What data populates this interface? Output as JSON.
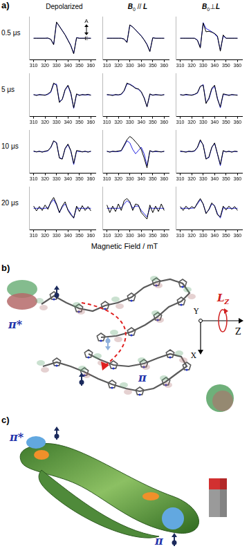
{
  "panel_a": {
    "label": "a)",
    "columns": [
      "Depolarized",
      {
        "symbol": "B",
        "subscript": "0",
        "relation": " // ",
        "target": "L"
      },
      {
        "symbol": "B",
        "subscript": "0",
        "relation": "⊥",
        "target": "L"
      }
    ],
    "rows": [
      "0.5 μs",
      "5 μs",
      "10 μs",
      "20 μs"
    ],
    "x_axis_label": "Magnetic Field / mT",
    "annotation": {
      "absorption": "A",
      "emission": "E"
    }
  },
  "chart_data": [
    {
      "type": "line",
      "x": [
        310,
        312.5,
        315,
        317.5,
        320,
        322.5,
        325,
        327.5,
        330,
        332.5,
        335,
        337.5,
        340,
        342.5,
        345,
        347.5,
        350,
        352.5,
        355,
        357.5,
        360
      ],
      "xlim": [
        306,
        364
      ],
      "xticks": [
        310,
        320,
        330,
        340,
        350,
        360
      ],
      "ylim": [
        -1,
        1
      ],
      "tick_labels": "x",
      "grid": false,
      "series": [
        {
          "color": "#000000",
          "values": [
            0,
            0,
            0,
            0,
            0,
            0.01,
            -0.05,
            -0.3,
            0.75,
            0.55,
            0.35,
            0.15,
            -0.1,
            -0.35,
            -0.72,
            0.02,
            0,
            0,
            0,
            0,
            0
          ]
        },
        {
          "color": "#2323e0",
          "values": [
            0,
            0,
            0,
            0,
            0,
            0,
            -0.05,
            -0.28,
            0.72,
            0.56,
            0.36,
            0.16,
            -0.08,
            -0.33,
            -0.7,
            0.03,
            0,
            0,
            0,
            0,
            0
          ]
        }
      ]
    },
    {
      "type": "line",
      "x": [
        310,
        312.5,
        315,
        317.5,
        320,
        322.5,
        325,
        327.5,
        330,
        332.5,
        335,
        337.5,
        340,
        342.5,
        345,
        347.5,
        350,
        352.5,
        355,
        357.5,
        360
      ],
      "xlim": [
        306,
        364
      ],
      "xticks": [
        310,
        320,
        330,
        340,
        350,
        360
      ],
      "ylim": [
        -1,
        1
      ],
      "tick_labels": "x",
      "grid": false,
      "series": [
        {
          "color": "#000000",
          "values": [
            0,
            0,
            0,
            0,
            0,
            0,
            -0.04,
            -0.2,
            0.62,
            0.52,
            0.38,
            0.24,
            0.1,
            -0.08,
            -0.3,
            -0.62,
            0.02,
            0,
            0,
            0,
            0
          ]
        },
        {
          "color": "#2323e0",
          "values": [
            0,
            0,
            0,
            0,
            0,
            0,
            -0.03,
            -0.18,
            0.6,
            0.52,
            0.39,
            0.25,
            0.11,
            -0.07,
            -0.28,
            -0.6,
            0.02,
            0,
            0,
            0,
            0
          ]
        }
      ]
    },
    {
      "type": "line",
      "x": [
        310,
        312.5,
        315,
        317.5,
        320,
        322.5,
        325,
        327.5,
        330,
        332.5,
        335,
        337.5,
        340,
        342.5,
        345,
        347.5,
        350,
        352.5,
        355,
        357.5,
        360
      ],
      "xlim": [
        306,
        364
      ],
      "xticks": [
        310,
        320,
        330,
        340,
        350,
        360
      ],
      "ylim": [
        -1,
        1
      ],
      "tick_labels": "x",
      "grid": false,
      "series": [
        {
          "color": "#000000",
          "values": [
            0,
            0,
            0,
            0,
            0,
            0,
            -0.1,
            -0.45,
            0.7,
            0.3,
            0.32,
            0.28,
            0.22,
            0.1,
            -0.6,
            0.15,
            0,
            0,
            0,
            0,
            0
          ]
        },
        {
          "color": "#2323e0",
          "values": [
            0,
            0,
            0,
            0,
            0,
            0,
            -0.08,
            -0.42,
            0.72,
            0.45,
            0.38,
            0.3,
            0.2,
            0.05,
            -0.55,
            0.1,
            0,
            0,
            0,
            0,
            0
          ]
        }
      ]
    },
    {
      "type": "line",
      "x": [
        310,
        312.5,
        315,
        317.5,
        320,
        322.5,
        325,
        327.5,
        330,
        332.5,
        335,
        337.5,
        340,
        342.5,
        345,
        347.5,
        350,
        352.5,
        355,
        357.5,
        360
      ],
      "xlim": [
        306,
        364
      ],
      "xticks": [
        310,
        320,
        330,
        340,
        350,
        360
      ],
      "ylim": [
        -1,
        1
      ],
      "tick_labels": "x",
      "grid": false,
      "series": [
        {
          "color": "#000000",
          "values": [
            0.02,
            -0.03,
            0.02,
            0,
            -0.02,
            0.05,
            0.15,
            0.55,
            0.45,
            -0.35,
            -0.2,
            0.25,
            0.45,
            0.1,
            -0.6,
            0.05,
            -0.03,
            0.02,
            0,
            0.03,
            -0.02
          ]
        },
        {
          "color": "#2323e0",
          "values": [
            0,
            0,
            0,
            0,
            0,
            0.02,
            0.12,
            0.5,
            0.5,
            -0.3,
            -0.22,
            0.22,
            0.42,
            0.05,
            -0.62,
            0.02,
            0,
            0,
            0,
            0,
            0
          ]
        }
      ]
    },
    {
      "type": "line",
      "x": [
        310,
        312.5,
        315,
        317.5,
        320,
        322.5,
        325,
        327.5,
        330,
        332.5,
        335,
        337.5,
        340,
        342.5,
        345,
        347.5,
        350,
        352.5,
        355,
        357.5,
        360
      ],
      "xlim": [
        306,
        364
      ],
      "xticks": [
        310,
        320,
        330,
        340,
        350,
        360
      ],
      "ylim": [
        -1,
        1
      ],
      "tick_labels": "x",
      "grid": false,
      "series": [
        {
          "color": "#000000",
          "values": [
            0.02,
            0,
            -0.03,
            0.02,
            0,
            0.04,
            0.2,
            0.55,
            0.48,
            0.4,
            0.3,
            0.28,
            0.15,
            -0.15,
            -0.55,
            0.05,
            -0.02,
            0.02,
            0,
            -0.02,
            0.02
          ]
        },
        {
          "color": "#2323e0",
          "values": [
            0,
            0,
            0,
            0,
            0,
            0.02,
            0.18,
            0.5,
            0.5,
            0.42,
            0.32,
            0.25,
            0.12,
            -0.12,
            -0.55,
            0.02,
            0,
            0,
            0,
            0,
            0
          ]
        }
      ]
    },
    {
      "type": "line",
      "x": [
        310,
        312.5,
        315,
        317.5,
        320,
        322.5,
        325,
        327.5,
        330,
        332.5,
        335,
        337.5,
        340,
        342.5,
        345,
        347.5,
        350,
        352.5,
        355,
        357.5,
        360
      ],
      "xlim": [
        306,
        364
      ],
      "xticks": [
        310,
        320,
        330,
        340,
        350,
        360
      ],
      "ylim": [
        -1,
        1
      ],
      "tick_labels": "x",
      "grid": false,
      "series": [
        {
          "color": "#000000",
          "values": [
            0.02,
            -0.02,
            0.03,
            0,
            -0.02,
            0.03,
            0.1,
            0.4,
            0.45,
            -0.4,
            -0.15,
            0.3,
            0.45,
            -0.2,
            -0.55,
            0.05,
            0.02,
            -0.03,
            0.02,
            0,
            -0.02
          ]
        },
        {
          "color": "#2323e0",
          "values": [
            0,
            0,
            0,
            0,
            0,
            0.02,
            0.08,
            0.38,
            0.48,
            -0.35,
            -0.2,
            0.25,
            0.4,
            -0.15,
            -0.6,
            0.02,
            0,
            0,
            0,
            0,
            0
          ]
        }
      ]
    },
    {
      "type": "line",
      "x": [
        310,
        312.5,
        315,
        317.5,
        320,
        322.5,
        325,
        327.5,
        330,
        332.5,
        335,
        337.5,
        340,
        342.5,
        345,
        347.5,
        350,
        352.5,
        355,
        357.5,
        360
      ],
      "xlim": [
        306,
        364
      ],
      "xticks": [
        310,
        320,
        330,
        340,
        350,
        360
      ],
      "ylim": [
        -1,
        1
      ],
      "tick_labels": "x",
      "grid": false,
      "series": [
        {
          "color": "#000000",
          "values": [
            0.03,
            -0.02,
            0.02,
            -0.03,
            0.02,
            0.05,
            0.2,
            0.5,
            0.4,
            -0.3,
            -0.35,
            0.15,
            0.35,
            0.05,
            -0.55,
            0.05,
            0.03,
            -0.02,
            0.02,
            -0.03,
            0.02
          ]
        },
        {
          "color": "#2323e0",
          "values": [
            0,
            0,
            0,
            0,
            0,
            0.03,
            0.18,
            0.48,
            0.42,
            -0.28,
            -0.33,
            0.12,
            0.32,
            0.02,
            -0.6,
            0.02,
            0,
            0,
            0,
            0,
            0
          ]
        }
      ]
    },
    {
      "type": "line",
      "x": [
        310,
        312.5,
        315,
        317.5,
        320,
        322.5,
        325,
        327.5,
        330,
        332.5,
        335,
        337.5,
        340,
        342.5,
        345,
        347.5,
        350,
        352.5,
        355,
        357.5,
        360
      ],
      "xlim": [
        306,
        364
      ],
      "xticks": [
        310,
        320,
        330,
        340,
        350,
        360
      ],
      "ylim": [
        -1,
        1
      ],
      "tick_labels": "x",
      "grid": false,
      "series": [
        {
          "color": "#000000",
          "values": [
            0.02,
            -0.03,
            0.02,
            0,
            0.03,
            0.05,
            0.3,
            0.55,
            0.7,
            0.6,
            0.45,
            0.3,
            0.1,
            -0.3,
            -0.75,
            0.05,
            -0.02,
            0.03,
            0,
            -0.02,
            0.02
          ]
        },
        {
          "color": "#2323e0",
          "values": [
            0,
            0,
            0,
            0,
            0,
            0.03,
            0.25,
            0.5,
            0.4,
            0.1,
            -0.1,
            0.05,
            0.2,
            -0.1,
            -0.65,
            0.02,
            0,
            0,
            0,
            0,
            0
          ]
        }
      ]
    },
    {
      "type": "line",
      "x": [
        310,
        312.5,
        315,
        317.5,
        320,
        322.5,
        325,
        327.5,
        330,
        332.5,
        335,
        337.5,
        340,
        342.5,
        345,
        347.5,
        350,
        352.5,
        355,
        357.5,
        360
      ],
      "xlim": [
        306,
        364
      ],
      "xticks": [
        310,
        320,
        330,
        340,
        350,
        360
      ],
      "ylim": [
        -1,
        1
      ],
      "tick_labels": "x",
      "grid": false,
      "series": [
        {
          "color": "#000000",
          "values": [
            0.03,
            0,
            -0.03,
            0.02,
            0,
            0.04,
            0.2,
            0.55,
            0.3,
            -0.35,
            -0.25,
            0.2,
            0.4,
            -0.1,
            -0.6,
            0.05,
            -0.02,
            0.02,
            -0.03,
            0.02,
            0
          ]
        },
        {
          "color": "#2323e0",
          "values": [
            0,
            0,
            0,
            0,
            0,
            0.02,
            0.18,
            0.5,
            0.32,
            -0.32,
            -0.28,
            0.18,
            0.38,
            -0.12,
            -0.65,
            0.02,
            0,
            0,
            0,
            0,
            0
          ]
        }
      ]
    },
    {
      "type": "line",
      "x": [
        310,
        312.5,
        315,
        317.5,
        320,
        322.5,
        325,
        327.5,
        330,
        332.5,
        335,
        337.5,
        340,
        342.5,
        345,
        347.5,
        350,
        352.5,
        355,
        357.5,
        360
      ],
      "xlim": [
        306,
        364
      ],
      "xticks": [
        310,
        320,
        330,
        340,
        350,
        360
      ],
      "ylim": [
        -1,
        1
      ],
      "tick_labels": "x",
      "grid": false,
      "series": [
        {
          "color": "#000000",
          "values": [
            0.1,
            -0.12,
            0.08,
            -0.1,
            0.15,
            -0.05,
            0.3,
            0.5,
            0.2,
            -0.2,
            0.1,
            0.3,
            -0.1,
            -0.3,
            -0.45,
            0.1,
            -0.15,
            0.12,
            -0.1,
            0.08,
            -0.12
          ]
        },
        {
          "color": "#2323e0",
          "values": [
            0,
            0,
            0,
            0,
            0,
            0.02,
            0.25,
            0.4,
            0.15,
            -0.2,
            0.05,
            0.2,
            -0.05,
            -0.25,
            -0.45,
            0.02,
            0,
            0,
            0,
            0,
            0
          ]
        }
      ]
    },
    {
      "type": "line",
      "x": [
        310,
        312.5,
        315,
        317.5,
        320,
        322.5,
        325,
        327.5,
        330,
        332.5,
        335,
        337.5,
        340,
        342.5,
        345,
        347.5,
        350,
        352.5,
        355,
        357.5,
        360
      ],
      "xlim": [
        306,
        364
      ],
      "xticks": [
        310,
        320,
        330,
        340,
        350,
        360
      ],
      "ylim": [
        -1,
        1
      ],
      "tick_labels": "x",
      "grid": false,
      "series": [
        {
          "color": "#000000",
          "values": [
            0.15,
            -0.2,
            0.1,
            -0.15,
            0.2,
            -0.1,
            0.35,
            0.45,
            0.3,
            -0.1,
            0.2,
            0.15,
            -0.2,
            -0.35,
            -0.5,
            0.15,
            -0.2,
            0.1,
            -0.15,
            0.2,
            -0.1
          ]
        },
        {
          "color": "#2323e0",
          "values": [
            0,
            0,
            0,
            0,
            0,
            0.02,
            0.2,
            0.35,
            0.25,
            0,
            0.1,
            0.1,
            -0.1,
            -0.25,
            -0.4,
            0.02,
            0,
            0,
            0,
            0,
            0
          ]
        }
      ]
    },
    {
      "type": "line",
      "x": [
        310,
        312.5,
        315,
        317.5,
        320,
        322.5,
        325,
        327.5,
        330,
        332.5,
        335,
        337.5,
        340,
        342.5,
        345,
        347.5,
        350,
        352.5,
        355,
        357.5,
        360
      ],
      "xlim": [
        306,
        364
      ],
      "xticks": [
        310,
        320,
        330,
        340,
        350,
        360
      ],
      "ylim": [
        -1,
        1
      ],
      "tick_labels": "x",
      "grid": false,
      "series": [
        {
          "color": "#000000",
          "values": [
            0.08,
            -0.1,
            0.1,
            -0.05,
            0.08,
            0,
            0.25,
            0.45,
            0.2,
            -0.25,
            -0.05,
            0.25,
            0.1,
            -0.3,
            -0.4,
            0.1,
            -0.08,
            0.1,
            -0.05,
            0.08,
            -0.1
          ]
        },
        {
          "color": "#2323e0",
          "values": [
            0,
            0,
            0,
            0,
            0,
            0.02,
            0.2,
            0.4,
            0.2,
            -0.22,
            -0.08,
            0.2,
            0.12,
            -0.25,
            -0.45,
            0.02,
            0,
            0,
            0,
            0,
            0
          ]
        }
      ]
    }
  ],
  "panel_b": {
    "label": "b)",
    "orbital_upper": "π*",
    "orbital_lower": "π",
    "axes": {
      "y": "Y",
      "z": "Z",
      "x": "X"
    },
    "angular_momentum": {
      "symbol": "L",
      "subscript": "Z"
    }
  },
  "panel_c": {
    "label": "c)",
    "orbital_upper": "π*",
    "orbital_lower": "π"
  }
}
